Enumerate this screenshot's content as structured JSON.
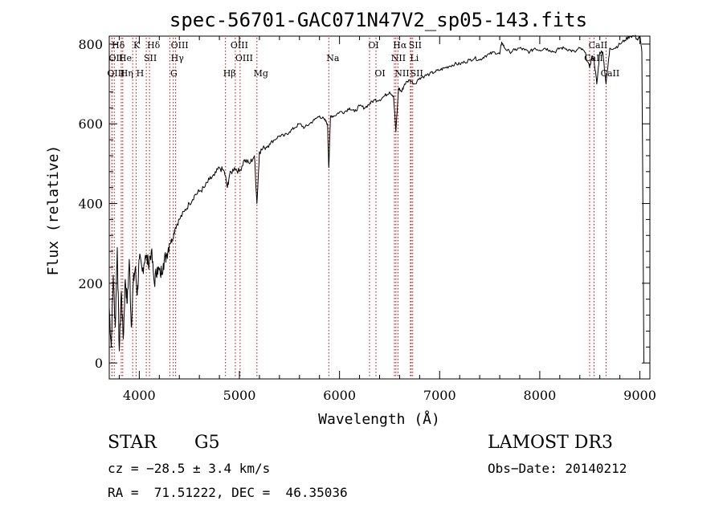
{
  "chart_data": {
    "type": "line",
    "title": "spec-56701-GAC071N47V2_sp05-143.fits",
    "xlabel": "Wavelength (Å)",
    "ylabel": "Flux (relative)",
    "xlim": [
      3700,
      9100
    ],
    "ylim": [
      -40,
      820
    ],
    "xticks": [
      4000,
      5000,
      6000,
      7000,
      8000,
      9000
    ],
    "yticks": [
      0,
      200,
      400,
      600,
      800
    ],
    "series": [
      {
        "name": "flux",
        "x": [
          3700,
          3720,
          3740,
          3760,
          3780,
          3800,
          3820,
          3840,
          3860,
          3880,
          3900,
          3920,
          3940,
          3960,
          3980,
          4000,
          4030,
          4060,
          4090,
          4120,
          4150,
          4180,
          4210,
          4240,
          4270,
          4300,
          4330,
          4360,
          4400,
          4450,
          4500,
          4550,
          4600,
          4650,
          4700,
          4750,
          4800,
          4850,
          4880,
          4900,
          4950,
          5000,
          5050,
          5100,
          5150,
          5175,
          5200,
          5250,
          5300,
          5350,
          5400,
          5450,
          5500,
          5550,
          5600,
          5650,
          5700,
          5750,
          5800,
          5850,
          5880,
          5893,
          5910,
          5950,
          6000,
          6050,
          6100,
          6150,
          6200,
          6250,
          6300,
          6350,
          6400,
          6450,
          6500,
          6540,
          6563,
          6590,
          6620,
          6650,
          6700,
          6750,
          6800,
          6850,
          6900,
          6950,
          7000,
          7050,
          7100,
          7150,
          7200,
          7250,
          7300,
          7350,
          7400,
          7450,
          7500,
          7550,
          7600,
          7620,
          7650,
          7700,
          7750,
          7800,
          7850,
          7900,
          7950,
          8000,
          8050,
          8100,
          8150,
          8200,
          8250,
          8300,
          8350,
          8400,
          8450,
          8498,
          8520,
          8542,
          8570,
          8600,
          8630,
          8662,
          8700,
          8750,
          8800,
          8850,
          8900,
          8950,
          8980,
          9000,
          9020,
          9040
        ],
        "y": [
          140,
          40,
          220,
          90,
          290,
          30,
          180,
          60,
          210,
          150,
          260,
          90,
          200,
          240,
          170,
          260,
          230,
          270,
          250,
          280,
          200,
          240,
          220,
          250,
          270,
          300,
          310,
          340,
          360,
          380,
          400,
          420,
          430,
          440,
          460,
          470,
          490,
          480,
          440,
          470,
          490,
          480,
          510,
          500,
          520,
          400,
          530,
          540,
          550,
          560,
          570,
          570,
          580,
          590,
          600,
          590,
          600,
          610,
          620,
          610,
          600,
          490,
          620,
          620,
          630,
          630,
          640,
          630,
          645,
          640,
          650,
          660,
          660,
          670,
          680,
          670,
          580,
          690,
          680,
          700,
          710,
          700,
          715,
          720,
          725,
          730,
          735,
          740,
          745,
          750,
          750,
          755,
          760,
          765,
          760,
          770,
          775,
          780,
          775,
          805,
          790,
          780,
          785,
          790,
          785,
          780,
          790,
          785,
          790,
          785,
          780,
          790,
          790,
          785,
          780,
          790,
          780,
          740,
          770,
          760,
          700,
          780,
          780,
          700,
          790,
          790,
          800,
          810,
          820,
          820,
          810,
          820,
          780,
          0
        ]
      }
    ],
    "lines": [
      {
        "label": "Hδ",
        "x": 3750,
        "row": 1
      },
      {
        "label": "OII",
        "x": 3727,
        "row": 2
      },
      {
        "label": "OIII",
        "x": 3727,
        "row": 3
      },
      {
        "label": "He",
        "x": 3820,
        "row": 2
      },
      {
        "label": "Hη",
        "x": 3835,
        "row": 3
      },
      {
        "label": "K",
        "x": 3934,
        "row": 1
      },
      {
        "label": "SII",
        "x": 4070,
        "row": 2
      },
      {
        "label": "H",
        "x": 3968,
        "row": 3
      },
      {
        "label": "Hδ",
        "x": 4102,
        "row": 1
      },
      {
        "label": "OIII",
        "x": 4363,
        "row": 1
      },
      {
        "label": "Hγ",
        "x": 4340,
        "row": 2
      },
      {
        "label": "G",
        "x": 4305,
        "row": 3
      },
      {
        "label": "OIII",
        "x": 4959,
        "row": 1
      },
      {
        "label": "OIII",
        "x": 5007,
        "row": 2
      },
      {
        "label": "Hβ",
        "x": 4861,
        "row": 3
      },
      {
        "label": "Mg",
        "x": 5175,
        "row": 3
      },
      {
        "label": "Na",
        "x": 5893,
        "row": 2
      },
      {
        "label": "OI",
        "x": 6300,
        "row": 1
      },
      {
        "label": "OI",
        "x": 6364,
        "row": 3
      },
      {
        "label": "Hα",
        "x": 6563,
        "row": 1
      },
      {
        "label": "SII",
        "x": 6716,
        "row": 1
      },
      {
        "label": "NII",
        "x": 6548,
        "row": 2
      },
      {
        "label": "Li",
        "x": 6708,
        "row": 2
      },
      {
        "label": "NII",
        "x": 6584,
        "row": 3
      },
      {
        "label": "SII",
        "x": 6731,
        "row": 3
      },
      {
        "label": "CaII",
        "x": 8542,
        "row": 1
      },
      {
        "label": "CaII",
        "x": 8498,
        "row": 2
      },
      {
        "label": "CaII",
        "x": 8662,
        "row": 3
      }
    ]
  },
  "info": {
    "class_label": "STAR",
    "subclass": "G5",
    "survey": "LAMOST DR3",
    "cz": "cz = −28.5 ± 3.4 km/s",
    "obs_date": "Obs−Date: 20140212",
    "coords": "RA =  71.51222, DEC =  46.35036"
  },
  "colors": {
    "line": "#000000",
    "marker": "#cc0000"
  }
}
